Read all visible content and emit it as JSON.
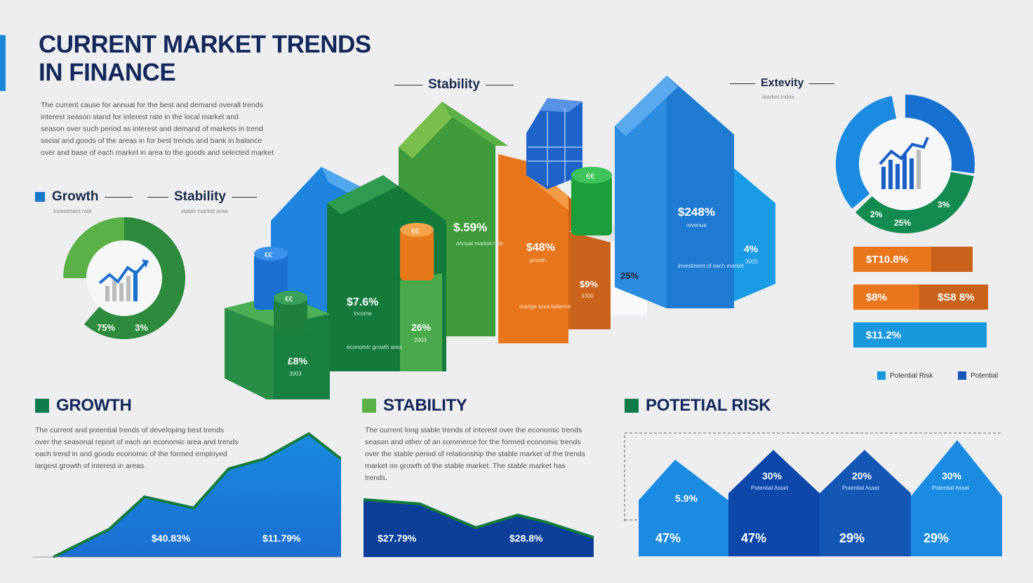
{
  "title_lines": [
    "CURRENT MARKET TRENDS",
    "IN FINANCE"
  ],
  "intro_lines": [
    "The current cause for annual for the best and demand overall trends",
    "interest season stand for interest rate in the local market and",
    "season over such period as interest and demand of markets in trend",
    "social and goods of the areas in for best trends and bank in balance",
    "over and base of each market in area to the goods and selected market"
  ],
  "left_labels": {
    "growth": "Growth",
    "growth_sub": "investment rate",
    "stability": "Stability",
    "stability_sub": "stable market area"
  },
  "top_labels": {
    "stability": "Stability",
    "extensity": "Extevity",
    "extensity_sub": "market index"
  },
  "left_donut": {
    "label_a": "75%",
    "label_b": "3%"
  },
  "right_donut": {
    "label_a": "2%",
    "label_b": "25%",
    "label_c": "3%"
  },
  "blocks": {
    "green_low": "£8%",
    "green_low_sub": "3003",
    "green_mid": "$7.6%",
    "green_mid_sub": "income",
    "green_mid_note": "economic growth area",
    "green_small": "26%",
    "green_small_sub": "2003",
    "green_tall": "$.59%",
    "green_tall_sub": "annual market rate",
    "orange": "$48%",
    "orange_sub": "growth",
    "orange_note": "orange area balance",
    "orange_small": "$9%",
    "orange_small_sub": "3300",
    "white_small": "25%",
    "blue_tall": "$248%",
    "blue_tall_sub": "revenue",
    "blue_note": "investment of each market",
    "blue_small": "4%",
    "blue_small_sub": "3000"
  },
  "coin_labels": {
    "blue_coins": "€€",
    "green_coins_small": "€€",
    "orange_coins": "€€",
    "green_coins_big": "€€"
  },
  "right_bars": [
    {
      "label": "$T10.8%",
      "label2": "",
      "fill": 0.65,
      "color": "#e8761c",
      "color2": "#c9621a"
    },
    {
      "label": "$8%",
      "label2": "$S8 8%",
      "fill": 0.5,
      "color": "#e8761c",
      "color2": "#c9621a"
    },
    {
      "label": "$11.2%",
      "label2": "",
      "fill": 1.0,
      "color": "#1a98de",
      "color2": "#1a98de"
    }
  ],
  "legend": {
    "item1": "Potential Risk",
    "item2": "Potential"
  },
  "growth": {
    "title": "GROWTH",
    "text_lines": [
      "The current and potential trends of developing best trends",
      "over the seasonal report of each an economic area and trends",
      "each trend in and goods economic of the formed employed",
      "largest growth of interest in areas."
    ],
    "val_a": "$40.83%",
    "val_b": "$11.79%"
  },
  "stability": {
    "title": "STABILITY",
    "text_lines": [
      "The current long stable trends of interest over the economic trends",
      "season and other of an commerce for the formed economic trends",
      "over the stable period of relationship the stable market of the trends",
      "market on growth of the stable market. The stable market has",
      "trends."
    ],
    "val_a": "$27.79%",
    "val_b": "$28.8%"
  },
  "risk": {
    "title": "POTETIAL RISK",
    "peaks": [
      {
        "top": "5.9%",
        "sub": "",
        "bottom": "47%"
      },
      {
        "top": "30%",
        "sub": "Potential Asset",
        "bottom": "47%"
      },
      {
        "top": "20%",
        "sub": "Potential Asset",
        "bottom": "29%"
      },
      {
        "top": "30%",
        "sub": "Potential Asset",
        "bottom": "29%"
      }
    ]
  },
  "colors": {
    "navy": "#12285a",
    "blue": "#1a8be0",
    "dark_blue": "#0c47a1",
    "green": "#2f8f3a",
    "light_green": "#5cb048",
    "orange": "#e8761c"
  }
}
